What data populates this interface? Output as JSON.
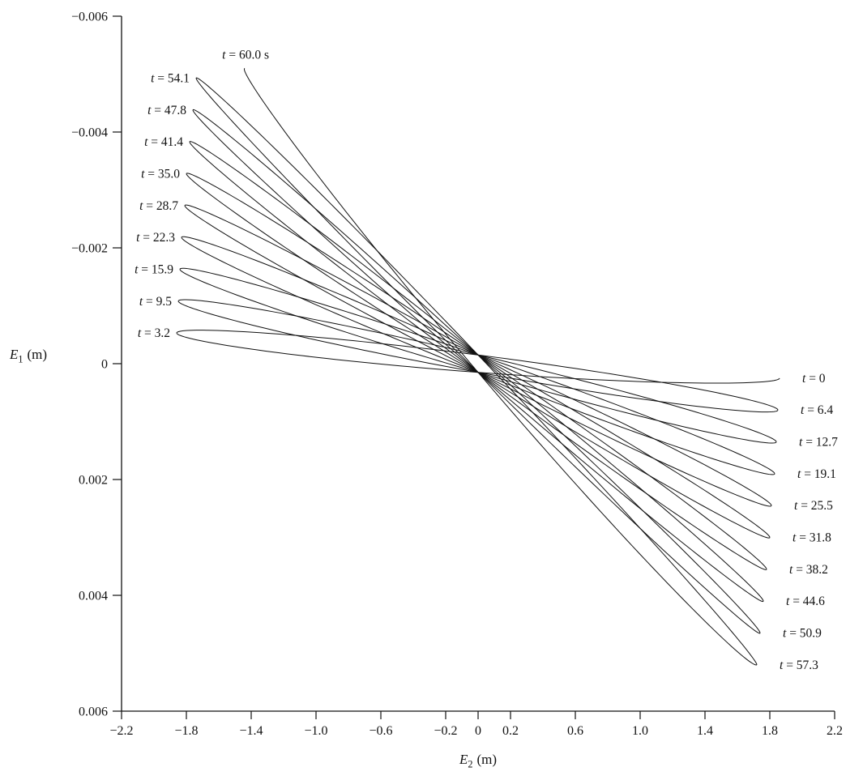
{
  "figure": {
    "background": "#ffffff",
    "ink": "#111111"
  },
  "chart_data": {
    "type": "line",
    "title": "",
    "description": "Trace of thin elliptical loops through the origin precessing with time (E1 vs E2), labelled at successive half-swing times from t = 0 to t = 60.0 s",
    "xlabel": {
      "var": "E",
      "sub": "2",
      "unit": "(m)"
    },
    "ylabel": {
      "var": "E",
      "sub": "1",
      "unit": "(m)"
    },
    "xlim": [
      -2.2,
      2.2
    ],
    "ylim_top_to_bottom": [
      -0.006,
      0.006
    ],
    "grid": false,
    "legend": "none",
    "x_ticks": [
      -2.2,
      -1.8,
      -1.4,
      -1.0,
      -0.6,
      -0.2,
      0,
      0.2,
      0.6,
      1.0,
      1.4,
      1.8,
      2.2
    ],
    "x_tick_labels": [
      "−2.2",
      "−1.8",
      "−1.4",
      "−1.0",
      "−0.6",
      "−0.2",
      "0",
      "0.2",
      "0.6",
      "1.0",
      "1.4",
      "1.8",
      "2.2"
    ],
    "y_ticks": [
      -0.006,
      -0.004,
      -0.002,
      0,
      0.002,
      0.004,
      0.006
    ],
    "y_tick_labels": [
      "−0.006",
      "−0.004",
      "−0.002",
      "0",
      "0.002",
      "0.004",
      "0.006"
    ],
    "loop_half_width_e1": 0.00015,
    "loops": [
      {
        "t": 0,
        "label": "t = 0",
        "side": "right",
        "e2": 1.86,
        "e1": 0.00025
      },
      {
        "t": 3.2,
        "label": "t = 3.2",
        "side": "left",
        "e2": -1.86,
        "e1": -0.00053
      },
      {
        "t": 6.4,
        "label": "t = 6.4",
        "side": "right",
        "e2": 1.85,
        "e1": 0.0008
      },
      {
        "t": 9.5,
        "label": "t = 9.5",
        "side": "left",
        "e2": -1.85,
        "e1": -0.00108
      },
      {
        "t": 12.7,
        "label": "t = 12.7",
        "side": "right",
        "e2": 1.84,
        "e1": 0.00135
      },
      {
        "t": 15.9,
        "label": "t = 15.9",
        "side": "left",
        "e2": -1.84,
        "e1": -0.00163
      },
      {
        "t": 19.1,
        "label": "t = 19.1",
        "side": "right",
        "e2": 1.83,
        "e1": 0.0019
      },
      {
        "t": 22.3,
        "label": "t = 22.3",
        "side": "left",
        "e2": -1.83,
        "e1": -0.00218
      },
      {
        "t": 25.5,
        "label": "t = 25.5",
        "side": "right",
        "e2": 1.81,
        "e1": 0.00245
      },
      {
        "t": 28.7,
        "label": "t = 28.7",
        "side": "left",
        "e2": -1.81,
        "e1": -0.00273
      },
      {
        "t": 31.8,
        "label": "t = 31.8",
        "side": "right",
        "e2": 1.8,
        "e1": 0.003
      },
      {
        "t": 35.0,
        "label": "t = 35.0",
        "side": "left",
        "e2": -1.8,
        "e1": -0.00328
      },
      {
        "t": 38.2,
        "label": "t = 38.2",
        "side": "right",
        "e2": 1.78,
        "e1": 0.00355
      },
      {
        "t": 41.4,
        "label": "t = 41.4",
        "side": "left",
        "e2": -1.78,
        "e1": -0.00383
      },
      {
        "t": 44.6,
        "label": "t = 44.6",
        "side": "right",
        "e2": 1.76,
        "e1": 0.0041
      },
      {
        "t": 47.8,
        "label": "t = 47.8",
        "side": "left",
        "e2": -1.76,
        "e1": -0.00438
      },
      {
        "t": 50.9,
        "label": "t = 50.9",
        "side": "right",
        "e2": 1.74,
        "e1": 0.00465
      },
      {
        "t": 54.1,
        "label": "t = 54.1",
        "side": "left",
        "e2": -1.74,
        "e1": -0.00493
      },
      {
        "t": 57.3,
        "label": "t = 57.3",
        "side": "right",
        "e2": 1.72,
        "e1": 0.0052
      },
      {
        "t": 60.0,
        "label": "t = 60.0 s",
        "side": "top",
        "e2": -1.44,
        "e1": -0.0051
      }
    ]
  }
}
